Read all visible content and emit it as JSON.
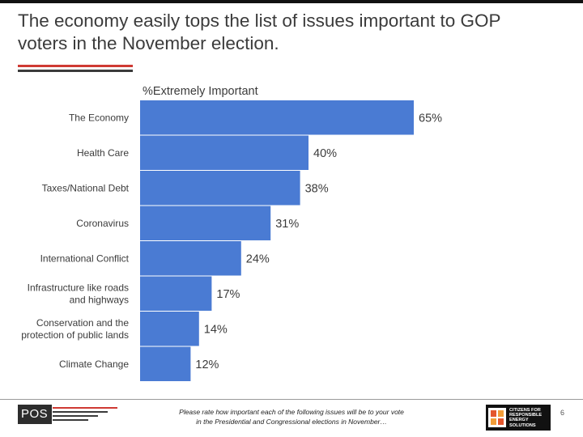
{
  "slide": {
    "title_lines": [
      "The economy easily tops the list of issues important to GOP",
      "voters in the November election."
    ],
    "page_number": "6"
  },
  "colors": {
    "bar": "#4a7bd3",
    "accent_red": "#cf3a33",
    "dark": "#3b3b3b"
  },
  "chart_data": {
    "type": "bar",
    "orientation": "horizontal",
    "series_name": "%Extremely Important",
    "categories": [
      [
        "The Economy"
      ],
      [
        "Health Care"
      ],
      [
        "Taxes/National Debt"
      ],
      [
        "Coronavirus"
      ],
      [
        "International Conflict"
      ],
      [
        "Infrastructure like roads",
        "and highways"
      ],
      [
        "Conservation and the",
        "protection of public lands"
      ],
      [
        "Climate Change"
      ]
    ],
    "values": [
      65,
      40,
      38,
      31,
      24,
      17,
      14,
      12
    ],
    "value_labels": [
      "65%",
      "40%",
      "38%",
      "31%",
      "24%",
      "17%",
      "14%",
      "12%"
    ],
    "xlim": [
      0,
      100
    ],
    "grid": false,
    "legend": "none"
  },
  "footer": {
    "logo_text": "POS",
    "footnote_lines": [
      "Please rate how important each of the following issues will be to your vote",
      "in the Presidential and Congressional elections in November…"
    ],
    "org_logo_lines": [
      "CITIZENS FOR",
      "RESPONSIBLE",
      "ENERGY SOLUTIONS"
    ]
  }
}
